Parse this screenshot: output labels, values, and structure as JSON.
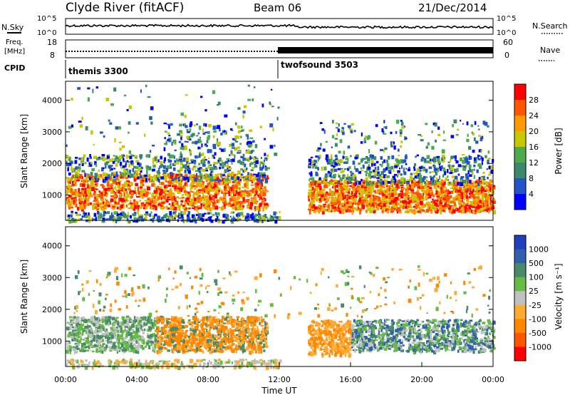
{
  "header": {
    "station": "Clyde River (fitACF)",
    "beam": "Beam 06",
    "date": "21/Dec/2014"
  },
  "labels": {
    "nsky": "N.Sky",
    "nsearch": "N.Search",
    "freq_line1": "Freq.",
    "freq_line2": "[MHz]",
    "nave": "Nave",
    "cpid": "CPID"
  },
  "colors": {
    "power_scale": [
      "#0000ff",
      "#2255c8",
      "#3a8a6a",
      "#4daa4d",
      "#c8c800",
      "#ff9900",
      "#ff5500",
      "#ff0000"
    ],
    "velocity_scale": [
      "#ff0000",
      "#ff5500",
      "#ff8800",
      "#ffaa33",
      "#c0c0c0",
      "#66bb44",
      "#4a8a6a",
      "#2f5fae",
      "#1f3fbf"
    ]
  },
  "chart_data": [
    {
      "type": "line",
      "name": "noise-strip",
      "xlim": [
        "00:00",
        "00:00"
      ],
      "left_axis": {
        "label": "N.Sky",
        "ticks": [
          "10^5",
          "10^0"
        ]
      },
      "right_axis": {
        "label": "N.Search",
        "ticks": [
          "10^5",
          "10^0"
        ]
      }
    },
    {
      "type": "line",
      "name": "freq-nave-strip",
      "left_axis": {
        "label": "Freq. [MHz]",
        "ticks": [
          "18",
          "8"
        ]
      },
      "right_axis": {
        "label": "Nave",
        "ticks": [
          "60",
          "0"
        ]
      }
    },
    {
      "type": "table",
      "name": "cpid-strip",
      "segments": [
        {
          "label": "themis 3300",
          "start": "00:00",
          "end": "12:00"
        },
        {
          "label": "twofsound 3503",
          "start": "12:00",
          "end": "24:00"
        }
      ]
    },
    {
      "type": "heatmap",
      "name": "power-panel",
      "ylabel": "Slant Range [km]",
      "yticks": [
        1000,
        2000,
        3000,
        4000
      ],
      "ylim": [
        200,
        4600
      ],
      "colorbar": {
        "label": "Power [dB]",
        "ticks": [
          4,
          8,
          12,
          16,
          20,
          24,
          28
        ],
        "range": [
          0,
          32
        ]
      }
    },
    {
      "type": "heatmap",
      "name": "velocity-panel",
      "ylabel": "Slant Range [km]",
      "yticks": [
        1000,
        2000,
        3000,
        4000
      ],
      "ylim": [
        200,
        4600
      ],
      "xlabel": "Time UT",
      "xticks": [
        "00:00",
        "04:00",
        "08:00",
        "12:00",
        "16:00",
        "20:00",
        "00:00"
      ],
      "colorbar": {
        "label": "Velocity [m s⁻¹]",
        "ticks": [
          "1000",
          "500",
          "100",
          "25",
          "-25",
          "-100",
          "-500",
          "-1000"
        ]
      }
    }
  ]
}
